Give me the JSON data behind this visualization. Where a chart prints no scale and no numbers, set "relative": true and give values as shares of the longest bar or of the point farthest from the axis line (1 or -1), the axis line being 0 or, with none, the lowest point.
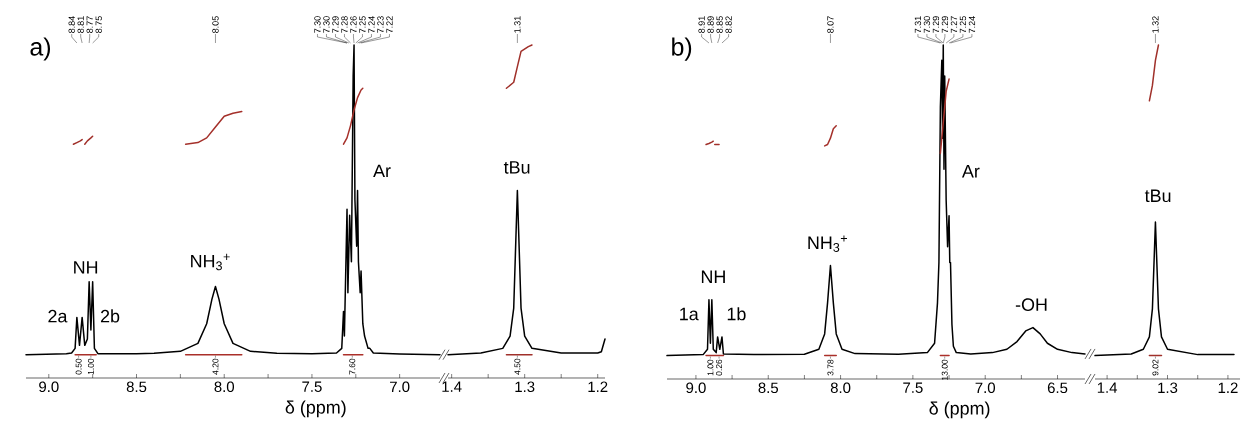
{
  "chart_data": [
    {
      "type": "line",
      "relative": true,
      "title": "a)",
      "xlabel": "δ (ppm)",
      "xlim": [
        9.13,
        6.77
      ],
      "xticks": [
        {
          "value": 9,
          "label": "9.0"
        },
        {
          "value": 8.75,
          "label": null
        },
        8.5,
        {
          "value": 8.25,
          "label": null
        },
        {
          "value": 8,
          "label": "8.0"
        },
        {
          "value": 7.75,
          "label": null
        },
        7.5,
        {
          "value": 7.25,
          "label": null
        },
        {
          "value": 7,
          "label": "7.0"
        }
      ],
      "series": [
        {
          "color": "#000000",
          "x": [
            9.13,
            8.9,
            8.87,
            8.85,
            8.84,
            8.825,
            8.81,
            8.795,
            8.78,
            8.77,
            8.76,
            8.75,
            8.74,
            8.72,
            8.5,
            8.4,
            8.25,
            8.15,
            8.1,
            8.07,
            8.05,
            8.03,
            8.0,
            7.95,
            7.85,
            7.7,
            7.5,
            7.36,
            7.33,
            7.32,
            7.315,
            7.3,
            7.295,
            7.285,
            7.275,
            7.265,
            7.26,
            7.255,
            7.245,
            7.24,
            7.235,
            7.225,
            7.22,
            7.21,
            7.2,
            7.18,
            7.17,
            7.15,
            7.0,
            6.77
          ],
          "values": [
            0.07,
            0.073,
            0.075,
            0.089,
            0.182,
            0.098,
            0.182,
            0.098,
            0.117,
            0.289,
            0.144,
            0.289,
            0.089,
            0.073,
            0.073,
            0.074,
            0.08,
            0.104,
            0.163,
            0.237,
            0.275,
            0.237,
            0.163,
            0.104,
            0.08,
            0.074,
            0.073,
            0.075,
            0.089,
            0.2,
            0.126,
            0.507,
            0.256,
            0.489,
            0.349,
            0.907,
            1,
            0.535,
            0.396,
            0.563,
            0.349,
            0.256,
            0.321,
            0.163,
            0.126,
            0.089,
            0.089,
            0.075,
            0.072,
            0.07
          ]
        },
        {
          "color": "#a0302a",
          "x": [
            8.86,
            8.84,
            8.82,
            8.81
          ],
          "values": [
            0.702,
            0.707,
            0.712,
            0.716
          ]
        },
        {
          "color": "#a2302a",
          "x": [
            8.795,
            8.78,
            8.76,
            8.75
          ],
          "values": [
            0.702,
            0.712,
            0.721,
            0.726
          ]
        },
        {
          "color": "#a4302a",
          "x": [
            8.22,
            8.15,
            8.1,
            8.05,
            8.0,
            7.95,
            7.9
          ],
          "values": [
            0.702,
            0.707,
            0.721,
            0.754,
            0.786,
            0.795,
            0.8
          ]
        },
        {
          "color": "#a6302a",
          "x": [
            7.32,
            7.3,
            7.28,
            7.26,
            7.24,
            7.22,
            7.21
          ],
          "values": [
            0.702,
            0.721,
            0.758,
            0.805,
            0.842,
            0.865,
            0.87
          ]
        },
        {
          "color": "#a8302a",
          "x": [
            8.85,
            8.73
          ],
          "values": [
            0.07,
            0.07
          ]
        },
        {
          "color": "#aa302a",
          "x": [
            8.22,
            7.9
          ],
          "values": [
            0.07,
            0.07
          ]
        },
        {
          "color": "#ac302a",
          "x": [
            7.32,
            7.21
          ],
          "values": [
            0.07,
            0.07
          ]
        }
      ],
      "annotations": [
        {
          "text": "8.84",
          "x": 8.84
        },
        {
          "text": "8.81",
          "x": 8.81
        },
        {
          "text": "8.77",
          "x": 8.77
        },
        {
          "text": "8.75",
          "x": 8.75
        },
        {
          "text": "8.05",
          "x": 8.05
        },
        {
          "text": "7.30",
          "x": 7.3
        },
        {
          "text": "7.30",
          "x": 7.3
        },
        {
          "text": "7.29",
          "x": 7.29
        },
        {
          "text": "7.28",
          "x": 7.28
        },
        {
          "text": "7.26",
          "x": 7.26
        },
        {
          "text": "7.25",
          "x": 7.25
        },
        {
          "text": "7.24",
          "x": 7.24
        },
        {
          "text": "7.23",
          "x": 7.23
        },
        {
          "text": "7.22",
          "x": 7.22
        },
        {
          "text": "0.50",
          "x": 8.83,
          "y": 0.07
        },
        {
          "text": "1.00",
          "x": 8.76,
          "y": 0.07
        },
        {
          "text": "4.20",
          "x": 8.05,
          "y": 0.07
        },
        {
          "text": "7.60",
          "x": 7.27,
          "y": 0.07
        },
        "NH",
        "2a",
        "2b",
        "NH$_{3}$$^{+}$",
        "Ar"
      ]
    },
    {
      "type": "line",
      "relative": true,
      "xlim": [
        1.405,
        1.19
      ],
      "xticks": [
        1.4,
        {
          "value": 1.35,
          "label": null
        },
        1.3,
        {
          "value": 1.25,
          "label": null
        },
        1.2
      ],
      "series": [
        {
          "color": "#000000",
          "x": [
            1.405,
            1.36,
            1.33,
            1.32,
            1.315,
            1.31,
            1.305,
            1.3,
            1.29,
            1.25,
            1.2,
            1.195,
            1.19
          ],
          "values": [
            0.07,
            0.075,
            0.089,
            0.126,
            0.21,
            0.563,
            0.21,
            0.126,
            0.089,
            0.075,
            0.075,
            0.079,
            0.117
          ]
        },
        {
          "color": "#a0302a",
          "x": [
            1.325,
            1.315,
            1.31,
            1.305,
            1.295,
            1.29
          ],
          "values": [
            0.87,
            0.888,
            0.935,
            0.981,
            0.995,
            1
          ]
        },
        {
          "color": "#a0302a",
          "x": [
            1.325,
            1.29
          ],
          "values": [
            0.07,
            0.07
          ]
        }
      ],
      "annotations": [
        {
          "text": "1.31",
          "x": 1.31
        },
        {
          "text": "4.50",
          "x": 1.31,
          "y": 0.07
        },
        "tBu"
      ]
    },
    {
      "type": "line",
      "relative": true,
      "title": "b)",
      "xlabel": "δ (ppm)",
      "xlim": [
        9.2,
        6.31
      ],
      "xticks": [
        {
          "value": 9,
          "label": "9.0"
        },
        {
          "value": 8.75,
          "label": null
        },
        8.5,
        {
          "value": 8.25,
          "label": null
        },
        {
          "value": 8,
          "label": "8.0"
        },
        {
          "value": 7.75,
          "label": null
        },
        7.5,
        {
          "value": 7.25,
          "label": null
        },
        {
          "value": 7,
          "label": "7.0"
        },
        {
          "value": 6.75,
          "label": null
        },
        6.5
      ],
      "series": [
        {
          "color": "#000000",
          "x": [
            9.2,
            8.95,
            8.92,
            8.91,
            8.9,
            8.89,
            8.88,
            8.86,
            8.85,
            8.835,
            8.82,
            8.81,
            8.6,
            8.25,
            8.15,
            8.11,
            8.09,
            8.07,
            8.05,
            8.03,
            7.99,
            7.9,
            7.6,
            7.4,
            7.35,
            7.33,
            7.32,
            7.31,
            7.3,
            7.295,
            7.29,
            7.285,
            7.28,
            7.27,
            7.26,
            7.25,
            7.245,
            7.24,
            7.23,
            7.22,
            7.2,
            7.1,
            6.95,
            6.85,
            6.78,
            6.72,
            6.67,
            6.62,
            6.57,
            6.5,
            6.4,
            6.31
          ],
          "values": [
            0.07,
            0.073,
            0.089,
            0.237,
            0.107,
            0.237,
            0.089,
            0.079,
            0.126,
            0.089,
            0.126,
            0.075,
            0.073,
            0.074,
            0.089,
            0.135,
            0.228,
            0.34,
            0.228,
            0.135,
            0.089,
            0.076,
            0.074,
            0.079,
            0.107,
            0.228,
            0.349,
            0.814,
            0.954,
            0.721,
            1,
            0.628,
            0.907,
            0.535,
            0.396,
            0.489,
            0.349,
            0.349,
            0.163,
            0.098,
            0.079,
            0.075,
            0.079,
            0.089,
            0.112,
            0.144,
            0.154,
            0.135,
            0.107,
            0.089,
            0.079,
            0.075
          ]
        },
        {
          "color": "#a0302a",
          "x": [
            8.93,
            8.91,
            8.89,
            8.88
          ],
          "values": [
            0.702,
            0.705,
            0.709,
            0.712
          ]
        },
        {
          "color": "#a2302a",
          "x": [
            8.87,
            8.84
          ],
          "values": [
            0.702,
            0.702
          ]
        },
        {
          "color": "#a4302a",
          "x": [
            8.11,
            8.09,
            8.07,
            8.05,
            8.03
          ],
          "values": [
            0.698,
            0.702,
            0.721,
            0.749,
            0.758
          ]
        },
        {
          "color": "#a6302a",
          "x": [
            7.31,
            7.29,
            7.27,
            7.25
          ],
          "values": [
            0.675,
            0.768,
            0.861,
            0.898
          ]
        },
        {
          "color": "#a8302a",
          "x": [
            8.93,
            8.81
          ],
          "values": [
            0.07,
            0.07
          ]
        },
        {
          "color": "#aa302a",
          "x": [
            8.11,
            8.03
          ],
          "values": [
            0.07,
            0.07
          ]
        },
        {
          "color": "#ac302a",
          "x": [
            7.31,
            7.25
          ],
          "values": [
            0.07,
            0.07
          ]
        }
      ],
      "annotations": [
        {
          "text": "8.91",
          "x": 8.91
        },
        {
          "text": "8.89",
          "x": 8.89
        },
        {
          "text": "8.85",
          "x": 8.85
        },
        {
          "text": "8.82",
          "x": 8.82
        },
        {
          "text": "8.07",
          "x": 8.07
        },
        {
          "text": "7.31",
          "x": 7.31
        },
        {
          "text": "7.30",
          "x": 7.3
        },
        {
          "text": "7.29",
          "x": 7.29
        },
        {
          "text": "7.29",
          "x": 7.29
        },
        {
          "text": "7.27",
          "x": 7.27
        },
        {
          "text": "7.25",
          "x": 7.25
        },
        {
          "text": "7.24",
          "x": 7.24
        },
        {
          "text": "1.00",
          "x": 8.9,
          "y": 0.07
        },
        {
          "text": "0.26",
          "x": 8.84,
          "y": 0.07
        },
        {
          "text": "3.78",
          "x": 8.07,
          "y": 0.07
        },
        {
          "text": "13.00",
          "x": 7.28,
          "y": 0.07
        },
        "NH",
        "1a",
        "1b",
        "NH$_{3}$$^{+}$",
        "Ar",
        "-OH"
      ]
    },
    {
      "type": "line",
      "relative": true,
      "xlim": [
        1.42,
        1.18
      ],
      "xticks": [
        1.4,
        {
          "value": 1.35,
          "label": null
        },
        1.3,
        {
          "value": 1.25,
          "label": null
        },
        1.2
      ],
      "series": [
        {
          "color": "#000000",
          "x": [
            1.42,
            1.36,
            1.34,
            1.33,
            1.325,
            1.32,
            1.315,
            1.31,
            1.3,
            1.25,
            1.19
          ],
          "values": [
            0.07,
            0.075,
            0.089,
            0.126,
            0.21,
            0.47,
            0.21,
            0.126,
            0.089,
            0.073,
            0.073
          ]
        },
        {
          "color": "#a0302a",
          "x": [
            1.33,
            1.325,
            1.32,
            1.315
          ],
          "values": [
            0.833,
            0.879,
            0.954,
            1
          ]
        },
        {
          "color": "#a0302a",
          "x": [
            1.33,
            1.31
          ],
          "values": [
            0.07,
            0.07
          ]
        }
      ],
      "annotations": [
        {
          "text": "1.32",
          "x": 1.32
        },
        {
          "text": "9.02",
          "x": 1.32,
          "y": 0.07
        },
        "tBu"
      ]
    }
  ]
}
